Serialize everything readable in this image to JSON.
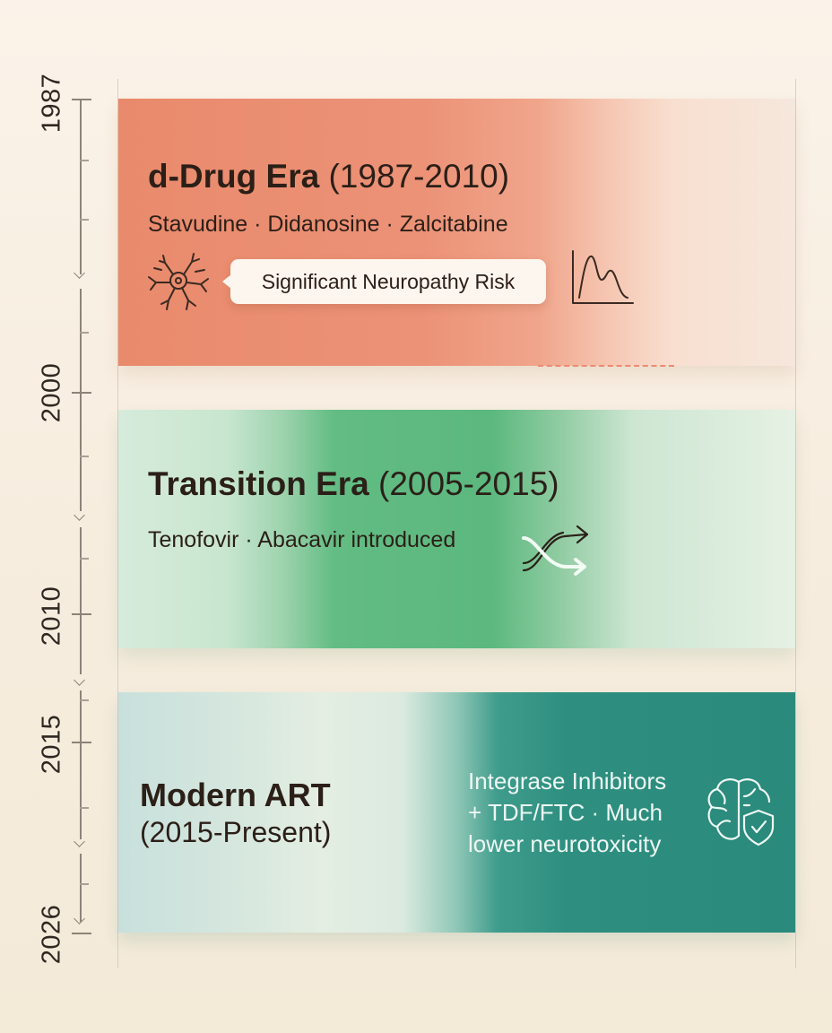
{
  "timeline": {
    "years": [
      "1987",
      "2000",
      "2010",
      "2015",
      "2026"
    ]
  },
  "eras": {
    "d_drug": {
      "title": "d-Drug Era",
      "range": "(1987-2010)",
      "drugs": "Stavudine · Didanosine · Zalcitabine",
      "callout": "Significant Neuropathy Risk",
      "color": "#e98a6c",
      "icons": [
        "neuron-icon",
        "neuropathy-curve-icon"
      ]
    },
    "transition": {
      "title": "Transition Era",
      "range": "(2005-2015)",
      "drugs": "Tenofovir · Abacavir introduced",
      "color": "#5bb87e",
      "icons": [
        "switch-arrows-icon"
      ]
    },
    "modern": {
      "title": "Modern ART",
      "range": "(2015-Present)",
      "desc_lines": [
        "Integrase Inhibitors",
        "+ TDF/FTC · Much",
        "lower neurotoxicity"
      ],
      "color": "#2e8f80",
      "icons": [
        "brain-shield-icon"
      ]
    }
  }
}
